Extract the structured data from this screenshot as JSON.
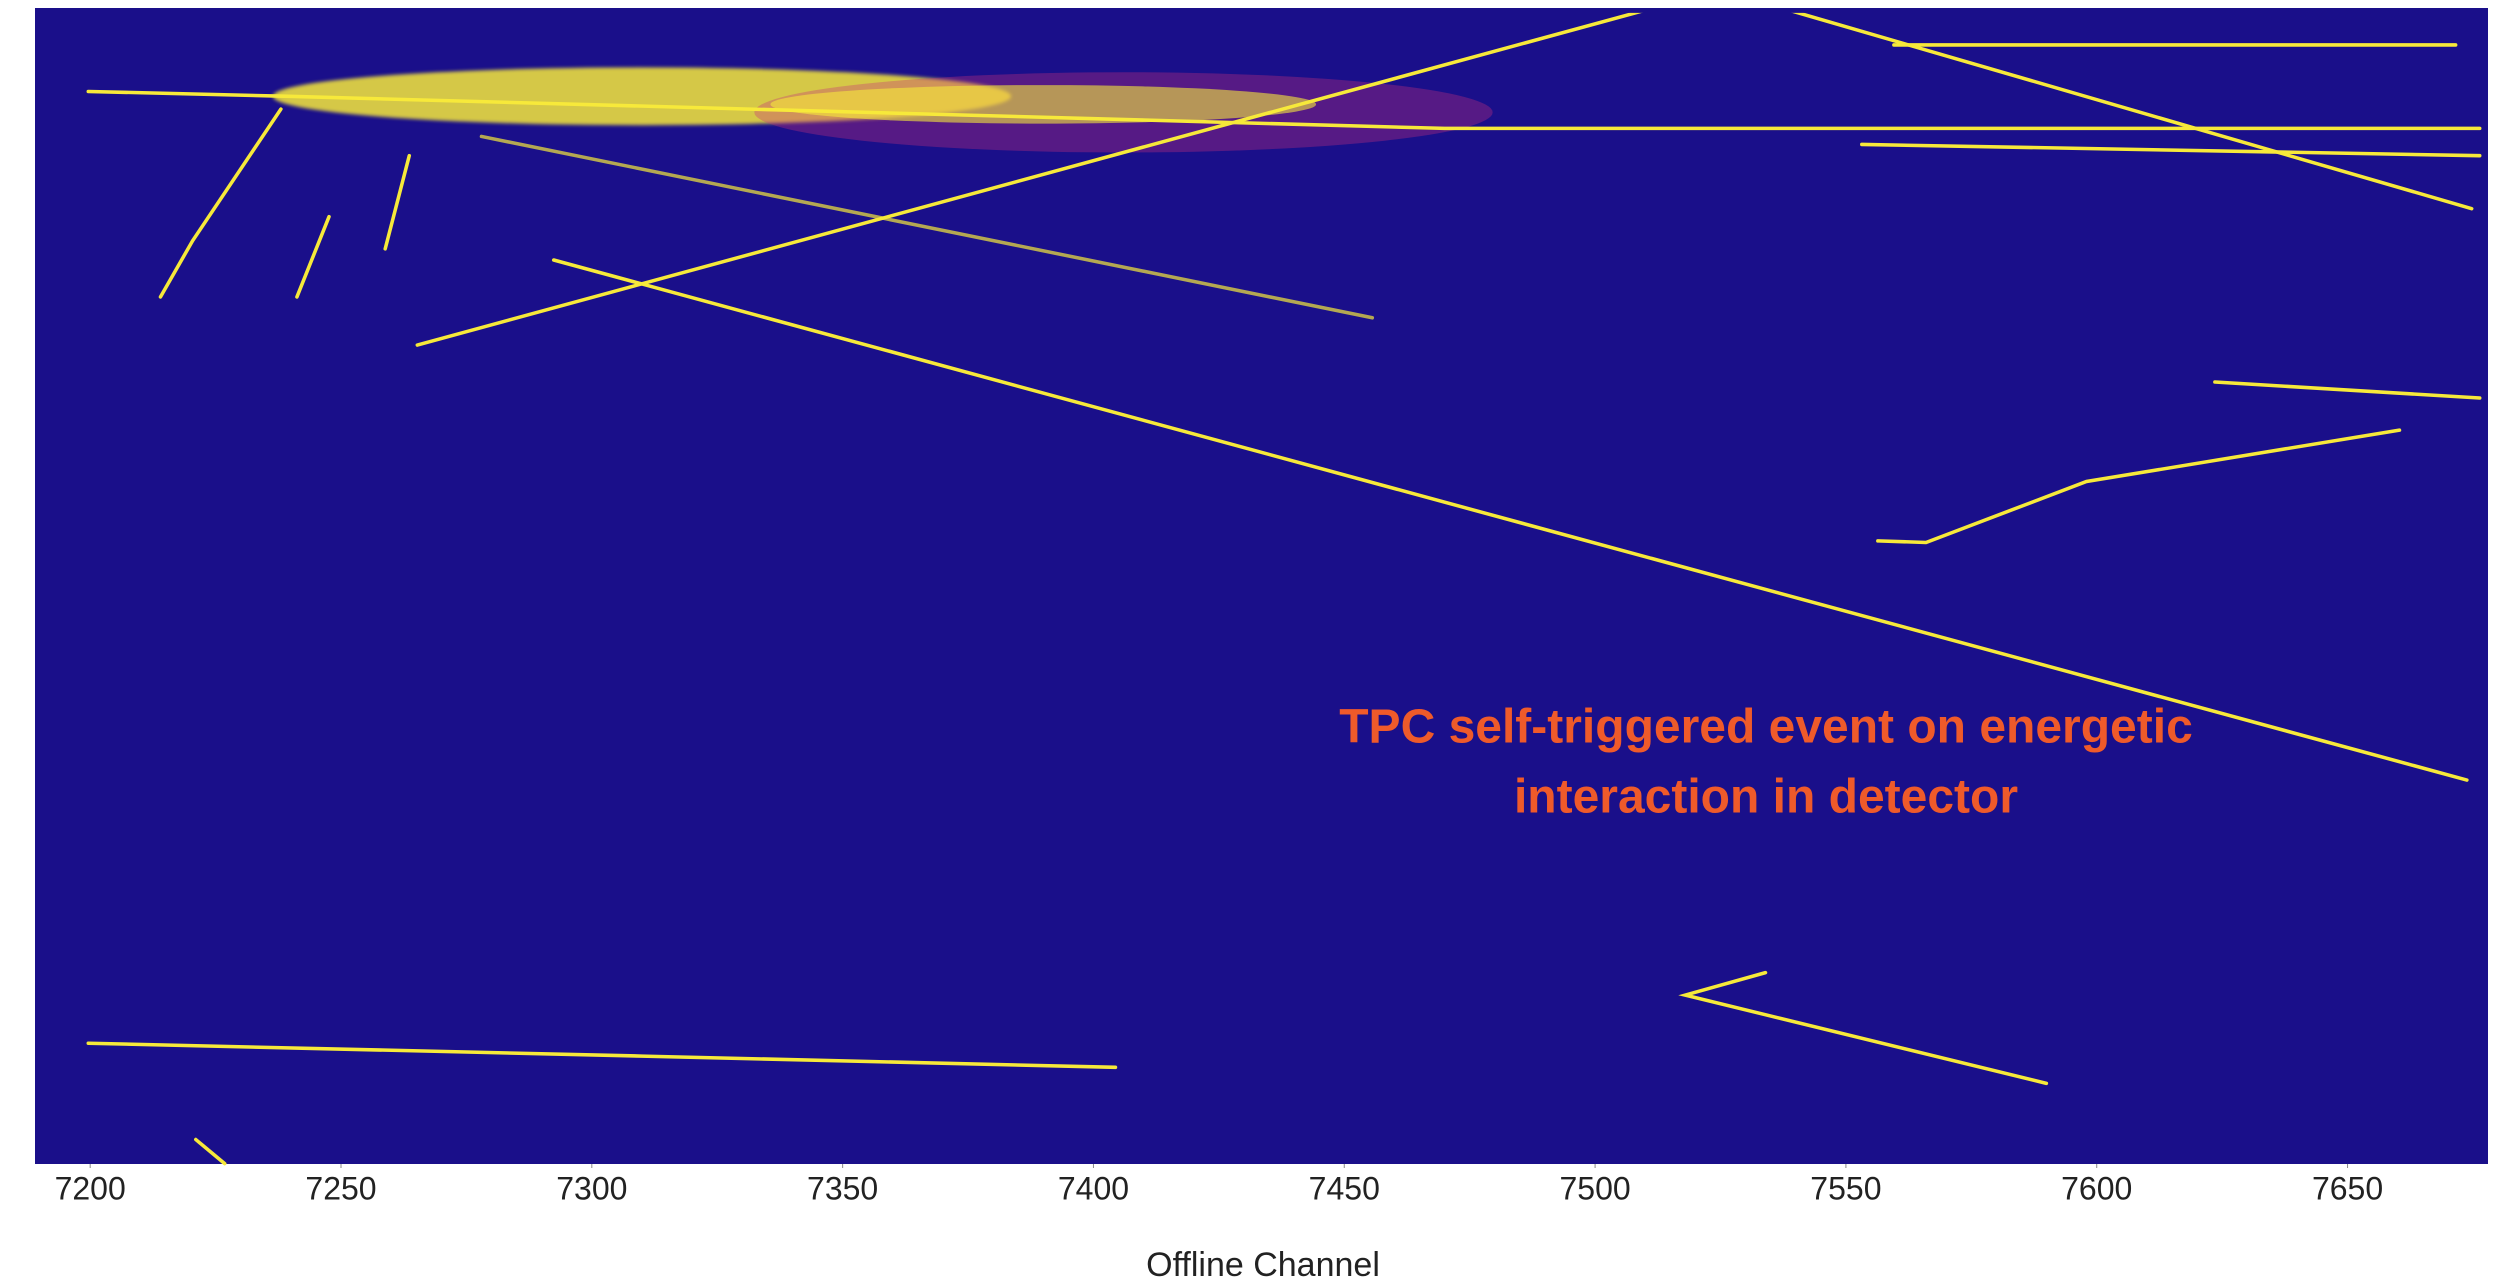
{
  "chart_data": {
    "type": "event-display",
    "xlabel": "Offline Channel",
    "xlim": [
      7189,
      7678
    ],
    "xticks": [
      7200,
      7250,
      7300,
      7350,
      7400,
      7450,
      7500,
      7550,
      7600,
      7650
    ],
    "annotation": [
      "TPC self-triggered event on energetic",
      "interaction in detector"
    ],
    "background": "#1a0f8a",
    "track_color": "#f7e93a"
  }
}
